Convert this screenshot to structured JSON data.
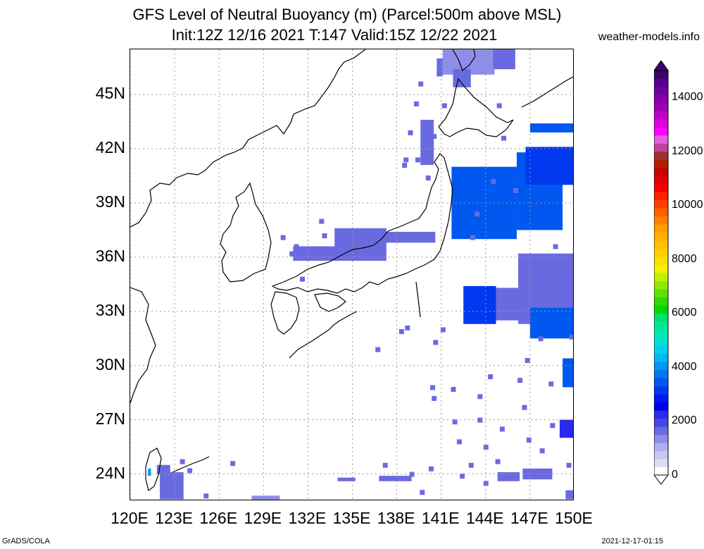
{
  "title": {
    "line1": "GFS Level of Neutral Buoyancy (m) (Parcel:500m above MSL)",
    "line2": "Init:12Z 12/16 2021 T:147 Valid:15Z 12/22 2021"
  },
  "credit": "weather-models.info",
  "footer": {
    "left": "GrADS/COLA",
    "right": "2021-12-17-01:15"
  },
  "map": {
    "lon_range": [
      120,
      150
    ],
    "lat_range": [
      22.5,
      47.5
    ],
    "lat_ticks": [
      {
        "value": 45,
        "label": "45N"
      },
      {
        "value": 42,
        "label": "42N"
      },
      {
        "value": 39,
        "label": "39N"
      },
      {
        "value": 36,
        "label": "36N"
      },
      {
        "value": 33,
        "label": "33N"
      },
      {
        "value": 30,
        "label": "30N"
      },
      {
        "value": 27,
        "label": "27N"
      },
      {
        "value": 24,
        "label": "24N"
      }
    ],
    "lon_ticks": [
      {
        "value": 120,
        "label": "120E"
      },
      {
        "value": 123,
        "label": "123E"
      },
      {
        "value": 126,
        "label": "126E"
      },
      {
        "value": 129,
        "label": "129E"
      },
      {
        "value": 132,
        "label": "132E"
      },
      {
        "value": 135,
        "label": "135E"
      },
      {
        "value": 138,
        "label": "138E"
      },
      {
        "value": 141,
        "label": "141E"
      },
      {
        "value": 144,
        "label": "144E"
      },
      {
        "value": 147,
        "label": "147E"
      },
      {
        "value": 150,
        "label": "150E"
      }
    ],
    "grid": true,
    "field_regions": [
      {
        "lon": [
          133.8,
          137.3
        ],
        "lat": [
          35.8,
          37.6
        ],
        "value": 1500
      },
      {
        "lon": [
          131.0,
          134.0
        ],
        "lat": [
          35.8,
          36.6
        ],
        "value": 1600
      },
      {
        "lon": [
          137.2,
          140.6
        ],
        "lat": [
          36.8,
          37.4
        ],
        "value": 1700
      },
      {
        "lon": [
          139.6,
          140.5
        ],
        "lat": [
          41.1,
          43.6
        ],
        "value": 1500
      },
      {
        "lon": [
          141.1,
          144.6
        ],
        "lat": [
          46.1,
          47.5
        ],
        "value": 1400
      },
      {
        "lon": [
          144.5,
          146.0
        ],
        "lat": [
          46.4,
          47.5
        ],
        "value": 1500
      },
      {
        "lon": [
          141.8,
          143.0
        ],
        "lat": [
          45.4,
          46.4
        ],
        "value": 1500
      },
      {
        "lon": [
          140.7,
          141.1
        ],
        "lat": [
          46.0,
          47.0
        ],
        "value": 1500
      },
      {
        "lon": [
          141.7,
          146.1
        ],
        "lat": [
          37.0,
          41.0
        ],
        "value": 3300
      },
      {
        "lon": [
          146.1,
          149.2
        ],
        "lat": [
          37.5,
          41.8
        ],
        "value": 3300
      },
      {
        "lon": [
          146.7,
          150.0
        ],
        "lat": [
          40.0,
          42.1
        ],
        "value": 3200
      },
      {
        "lon": [
          147.0,
          150.0
        ],
        "lat": [
          42.9,
          43.4
        ],
        "value": 3400
      },
      {
        "lon": [
          142.5,
          144.7
        ],
        "lat": [
          32.3,
          34.4
        ],
        "value": 3000
      },
      {
        "lon": [
          144.7,
          147.0
        ],
        "lat": [
          32.5,
          34.3
        ],
        "value": 1500
      },
      {
        "lon": [
          146.2,
          150.0
        ],
        "lat": [
          32.3,
          36.2
        ],
        "value": 1700
      },
      {
        "lon": [
          147.0,
          150.0
        ],
        "lat": [
          31.5,
          33.2
        ],
        "value": 3400
      },
      {
        "lon": [
          149.2,
          150.0
        ],
        "lat": [
          28.8,
          30.4
        ],
        "value": 3300
      },
      {
        "lon": [
          146.5,
          148.5
        ],
        "lat": [
          23.7,
          24.3
        ],
        "value": 1700
      },
      {
        "lon": [
          144.8,
          146.3
        ],
        "lat": [
          23.6,
          24.1
        ],
        "value": 1700
      },
      {
        "lon": [
          149.0,
          150.0
        ],
        "lat": [
          26.0,
          27.0
        ],
        "value": 2300
      },
      {
        "lon": [
          122.0,
          123.6
        ],
        "lat": [
          22.6,
          24.1
        ],
        "value": 1700
      },
      {
        "lon": [
          121.8,
          122.7
        ],
        "lat": [
          24.0,
          24.5
        ],
        "value": 1700
      },
      {
        "lon": [
          121.2,
          121.4
        ],
        "lat": [
          23.9,
          24.3
        ],
        "value": 4000
      },
      {
        "lon": [
          136.8,
          139.0
        ],
        "lat": [
          23.6,
          23.9
        ],
        "value": 1500
      },
      {
        "lon": [
          134.0,
          135.2
        ],
        "lat": [
          23.6,
          23.8
        ],
        "value": 1500
      },
      {
        "lon": [
          149.4,
          150.0
        ],
        "lat": [
          22.6,
          23.1
        ],
        "value": 1500
      },
      {
        "lon": [
          128.2,
          130.1
        ],
        "lat": [
          22.5,
          22.8
        ],
        "value": 1400
      }
    ],
    "field_dots": [
      [
        132.9,
        38.0
      ],
      [
        133.1,
        37.2
      ],
      [
        131.2,
        36.6
      ],
      [
        131.6,
        34.8
      ],
      [
        130.3,
        37.1
      ],
      [
        130.9,
        36.2
      ],
      [
        139.6,
        45.6
      ],
      [
        139.3,
        44.5
      ],
      [
        140.5,
        42.7
      ],
      [
        140.1,
        40.4
      ],
      [
        139.4,
        41.4
      ],
      [
        141.2,
        44.4
      ],
      [
        138.6,
        41.4
      ],
      [
        138.5,
        41.1
      ],
      [
        138.9,
        42.9
      ],
      [
        144.9,
        44.4
      ],
      [
        145.2,
        42.6
      ],
      [
        144.5,
        40.2
      ],
      [
        143.4,
        38.4
      ],
      [
        143.1,
        37.1
      ],
      [
        146.0,
        39.7
      ],
      [
        148.7,
        36.6
      ],
      [
        148.9,
        34.7
      ],
      [
        149.8,
        31.6
      ],
      [
        146.8,
        30.3
      ],
      [
        146.3,
        29.2
      ],
      [
        146.6,
        27.7
      ],
      [
        148.5,
        26.7
      ],
      [
        146.9,
        25.9
      ],
      [
        143.6,
        28.3
      ],
      [
        142.2,
        25.8
      ],
      [
        141.9,
        26.9
      ],
      [
        144.3,
        29.4
      ],
      [
        145.1,
        26.5
      ],
      [
        144.0,
        25.5
      ],
      [
        143.0,
        24.5
      ],
      [
        144.0,
        23.5
      ],
      [
        142.4,
        23.9
      ],
      [
        139.7,
        23.0
      ],
      [
        140.3,
        24.3
      ],
      [
        137.2,
        24.5
      ],
      [
        139.0,
        24.0
      ],
      [
        148.4,
        29.0
      ],
      [
        147.7,
        31.5
      ],
      [
        149.6,
        24.5
      ],
      [
        141.1,
        32.0
      ],
      [
        138.3,
        31.9
      ],
      [
        138.7,
        32.1
      ],
      [
        140.4,
        28.8
      ],
      [
        147.8,
        25.3
      ],
      [
        123.5,
        24.7
      ],
      [
        124.0,
        24.2
      ],
      [
        125.1,
        22.8
      ],
      [
        126.9,
        24.6
      ],
      [
        140.6,
        31.3
      ],
      [
        144.8,
        24.7
      ],
      [
        136.7,
        30.9
      ],
      [
        141.8,
        28.7
      ],
      [
        140.5,
        28.2
      ],
      [
        143.6,
        27.0
      ]
    ]
  },
  "colorbar": {
    "min": 0,
    "max": 15000,
    "labels": [
      "14000",
      "12000",
      "10000",
      "8000",
      "6000",
      "4000",
      "2000",
      "0"
    ],
    "colors": [
      "#ffffff",
      "#dcdcf8",
      "#c8c8f4",
      "#aeaef0",
      "#8e8ee8",
      "#6a6ae0",
      "#4646e6",
      "#2a2aef",
      "#0000f0",
      "#0018f0",
      "#0038f0",
      "#0058f0",
      "#0078f0",
      "#0098f0",
      "#00b8f0",
      "#00d0e8",
      "#00e0d0",
      "#00e8b0",
      "#00e890",
      "#00e070",
      "#00d800",
      "#30d800",
      "#60e000",
      "#90e800",
      "#c0f000",
      "#f0f000",
      "#f8e000",
      "#fcd000",
      "#ffc000",
      "#ffb000",
      "#ffa000",
      "#ff8000",
      "#ff6000",
      "#ff4000",
      "#ff2000",
      "#f80000",
      "#e00000",
      "#cc0000",
      "#b02000",
      "#a03030",
      "#c040a0",
      "#e060e0",
      "#ff00ff",
      "#e000e0",
      "#c000c8",
      "#a000b0",
      "#8800a8",
      "#7000a0",
      "#5a0090",
      "#400070"
    ]
  }
}
